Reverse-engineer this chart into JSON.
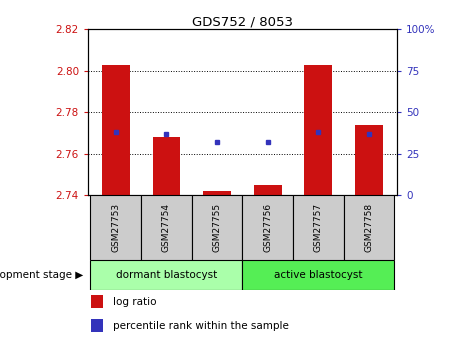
{
  "title": "GDS752 / 8053",
  "samples": [
    "GSM27753",
    "GSM27754",
    "GSM27755",
    "GSM27756",
    "GSM27757",
    "GSM27758"
  ],
  "log_ratios": [
    2.803,
    2.768,
    2.742,
    2.745,
    2.803,
    2.774
  ],
  "percentile_ranks": [
    38,
    37,
    32,
    32,
    38,
    37
  ],
  "baseline": 2.74,
  "ylim_left": [
    2.74,
    2.82
  ],
  "ylim_right": [
    0,
    100
  ],
  "yticks_left": [
    2.74,
    2.76,
    2.78,
    2.8,
    2.82
  ],
  "yticks_right": [
    0,
    25,
    50,
    75,
    100
  ],
  "bar_color": "#cc1111",
  "dot_color": "#3333bb",
  "group_labels": [
    "dormant blastocyst",
    "active blastocyst"
  ],
  "group_colors_dormant": "#aaffaa",
  "group_colors_active": "#55ee55",
  "group_ranges": [
    [
      0,
      3
    ],
    [
      3,
      6
    ]
  ],
  "legend_label_bar": "log ratio",
  "legend_label_dot": "percentile rank within the sample",
  "xlabel_label": "development stage",
  "tick_bg_color": "#cccccc",
  "plot_bg": "#ffffff",
  "bar_width": 0.55
}
